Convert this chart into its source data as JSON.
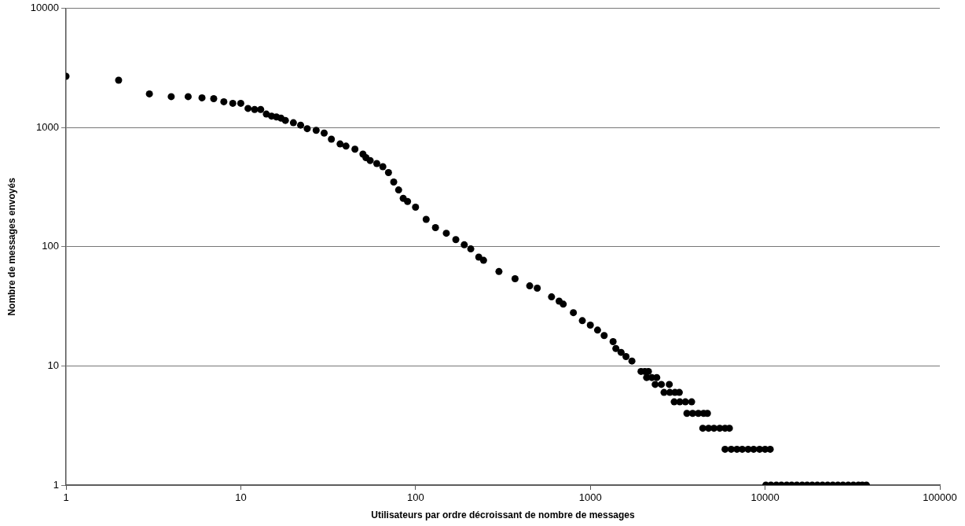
{
  "chart_data": {
    "type": "scatter",
    "xlabel": "Utilisateurs par ordre décroissant de nombre de messages",
    "ylabel": "Nombre de messages envoyés",
    "x": [
      1,
      2,
      3,
      4,
      5,
      6,
      7,
      8,
      9,
      10,
      11,
      12,
      13,
      14,
      15,
      16,
      17,
      18,
      20,
      22,
      24,
      27,
      30,
      33,
      37,
      40,
      45,
      50,
      52,
      55,
      60,
      65,
      70,
      75,
      80,
      85,
      90,
      100,
      115,
      130,
      150,
      170,
      190,
      207,
      230,
      245,
      300,
      371,
      450,
      497,
      600,
      663,
      700,
      800,
      900,
      1000,
      1100,
      1200,
      1350,
      1400,
      1500,
      1600,
      1730,
      1950,
      2050,
      2150,
      2100,
      2250,
      2400,
      2350,
      2550,
      2830,
      2640,
      2850,
      3050,
      3230,
      3020,
      3250,
      3500,
      3800,
      3570,
      3850,
      4150,
      4450,
      4680,
      4400,
      4750,
      5100,
      5500,
      5900,
      6250,
      5900,
      6400,
      6900,
      7400,
      8000,
      8600,
      9300,
      10000,
      10700,
      10100,
      10800,
      11600,
      12400,
      13300,
      14200,
      15200,
      16300,
      17400,
      18600,
      19900,
      21300,
      22800,
      24400,
      26100,
      27900,
      29900,
      32000,
      34200,
      36000,
      38000
    ],
    "values": [
      2700,
      2500,
      1920,
      1820,
      1820,
      1780,
      1750,
      1650,
      1600,
      1600,
      1450,
      1420,
      1420,
      1300,
      1250,
      1230,
      1200,
      1150,
      1100,
      1050,
      980,
      950,
      900,
      800,
      730,
      700,
      660,
      600,
      560,
      530,
      500,
      470,
      420,
      350,
      300,
      255,
      240,
      215,
      170,
      145,
      130,
      115,
      104,
      96,
      82,
      77,
      62,
      54,
      47,
      45,
      38,
      35,
      33,
      28,
      24,
      22,
      20,
      18,
      16,
      14,
      13,
      12,
      11,
      9,
      9,
      9,
      8,
      8,
      8,
      7,
      7,
      7,
      6,
      6,
      6,
      6,
      5,
      5,
      5,
      5,
      4,
      4,
      4,
      4,
      4,
      3,
      3,
      3,
      3,
      3,
      3,
      2,
      2,
      2,
      2,
      2,
      2,
      2,
      2,
      2,
      1,
      1,
      1,
      1,
      1,
      1,
      1,
      1,
      1,
      1,
      1,
      1,
      1,
      1,
      1,
      1,
      1,
      1,
      1,
      1,
      1
    ],
    "color": "#000000",
    "marker": "circle",
    "log": "xy",
    "grid": "y",
    "xlim": [
      1,
      100000
    ],
    "xticks": [
      1,
      10,
      100,
      1000,
      10000,
      100000
    ],
    "ylim": [
      1,
      10000
    ],
    "yticks": [
      1,
      10,
      100,
      1000,
      10000
    ]
  }
}
